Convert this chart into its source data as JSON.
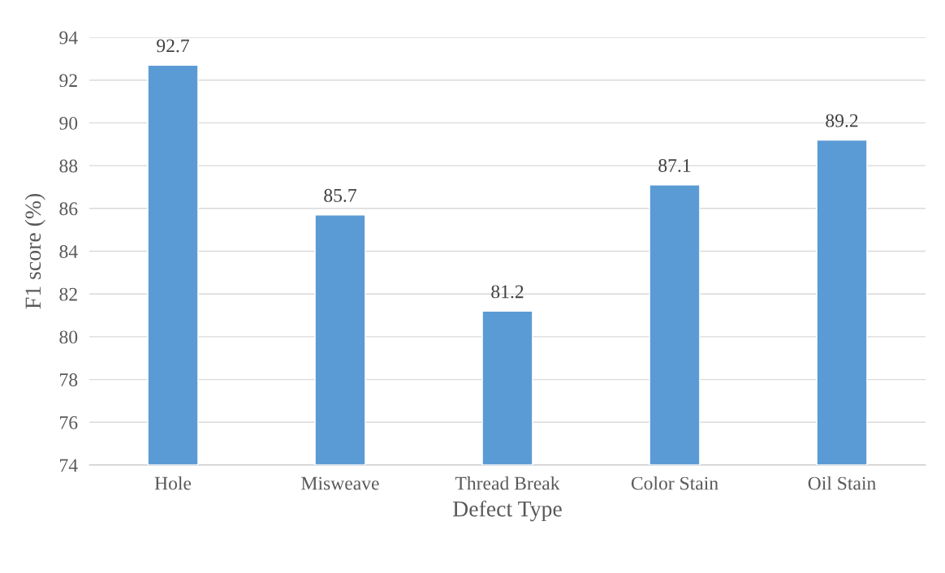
{
  "chart_data": {
    "type": "bar",
    "xlabel": "Defect Type",
    "ylabel": "F1 score (%)",
    "categories": [
      "Hole",
      "Misweave",
      "Thread Break",
      "Color Stain",
      "Oil Stain"
    ],
    "values": [
      92.7,
      85.7,
      81.2,
      87.1,
      89.2
    ],
    "color": "#5b9bd5",
    "ylim": [
      74,
      94
    ],
    "yticks": [
      74,
      76,
      78,
      80,
      82,
      84,
      86,
      88,
      90,
      92,
      94
    ],
    "grid": "y",
    "data_labels": true
  }
}
